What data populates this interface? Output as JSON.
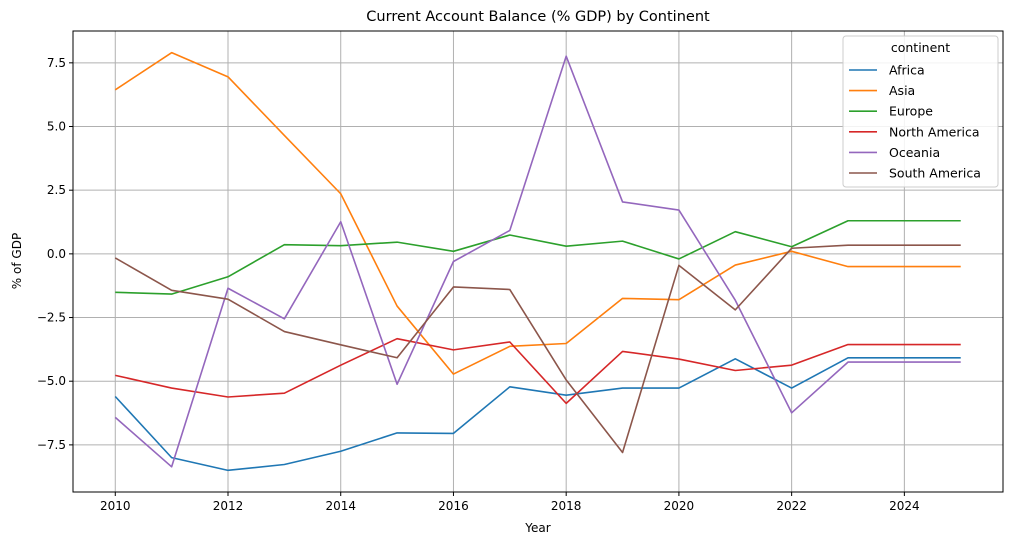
{
  "chart_data": {
    "type": "line",
    "title": "Current Account Balance (% GDP) by Continent",
    "xlabel": "Year",
    "ylabel": "% of GDP",
    "x": [
      2010,
      2011,
      2012,
      2013,
      2014,
      2015,
      2016,
      2017,
      2018,
      2019,
      2020,
      2021,
      2022,
      2023,
      2024,
      2025
    ],
    "xlim": [
      2009.25,
      2025.75
    ],
    "ylim": [
      -9.35,
      8.75
    ],
    "xticks": [
      2010,
      2012,
      2014,
      2016,
      2018,
      2020,
      2022,
      2024
    ],
    "xtick_labels": [
      "2010",
      "2012",
      "2014",
      "2016",
      "2018",
      "2020",
      "2022",
      "2024"
    ],
    "yticks": [
      -7.5,
      -5.0,
      -2.5,
      0.0,
      2.5,
      5.0,
      7.5
    ],
    "ytick_labels": [
      "−7.5",
      "−5.0",
      "−2.5",
      "0.0",
      "2.5",
      "5.0",
      "7.5"
    ],
    "grid": true,
    "legend": {
      "title": "continent",
      "placement": "top-right"
    },
    "series": [
      {
        "name": "Africa",
        "color": "#1f77b4",
        "values": [
          -5.6,
          -8.0,
          -8.5,
          -8.27,
          -7.75,
          -7.03,
          -7.05,
          -5.22,
          -5.55,
          -5.27,
          -5.27,
          -4.12,
          -5.27,
          -4.08,
          -4.08,
          -4.08
        ]
      },
      {
        "name": "Asia",
        "color": "#ff7f0e",
        "values": [
          6.44,
          7.9,
          6.95,
          4.65,
          2.36,
          -2.05,
          -4.72,
          -3.63,
          -3.52,
          -1.75,
          -1.8,
          -0.44,
          0.1,
          -0.5,
          -0.5,
          -0.5
        ]
      },
      {
        "name": "Europe",
        "color": "#2ca02c",
        "values": [
          -1.51,
          -1.58,
          -0.9,
          0.36,
          0.32,
          0.46,
          0.1,
          0.74,
          0.3,
          0.5,
          -0.2,
          0.87,
          0.28,
          1.3,
          1.3,
          1.3
        ]
      },
      {
        "name": "North America",
        "color": "#d62728",
        "values": [
          -4.77,
          -5.27,
          -5.62,
          -5.47,
          -4.37,
          -3.33,
          -3.77,
          -3.46,
          -5.87,
          -3.83,
          -4.13,
          -4.58,
          -4.37,
          -3.56,
          -3.56,
          -3.56
        ]
      },
      {
        "name": "Oceania",
        "color": "#9467bd",
        "values": [
          -6.42,
          -8.36,
          -1.35,
          -2.55,
          1.26,
          -5.12,
          -0.3,
          0.92,
          7.76,
          2.04,
          1.72,
          -1.82,
          -6.24,
          -4.25,
          -4.25,
          -4.25
        ]
      },
      {
        "name": "South America",
        "color": "#8c564b",
        "values": [
          -0.16,
          -1.43,
          -1.78,
          -3.05,
          -3.57,
          -4.08,
          -1.3,
          -1.4,
          -4.95,
          -7.8,
          -0.45,
          -2.2,
          0.22,
          0.34,
          0.34,
          0.34
        ]
      }
    ]
  }
}
